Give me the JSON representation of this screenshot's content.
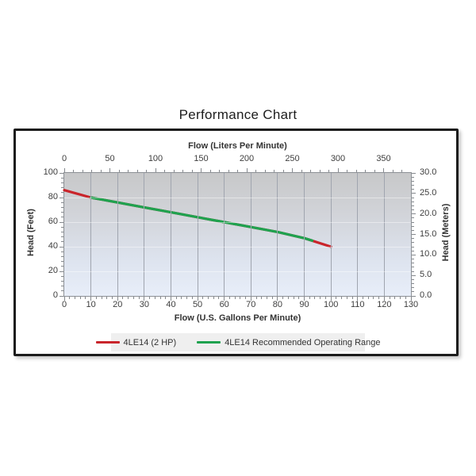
{
  "title": "Performance Chart",
  "chart_data": {
    "type": "line",
    "title": "Performance Chart",
    "plot_background_gradient": [
      "#c7c8c9",
      "#e8eef9"
    ],
    "gridlines": {
      "vertical": true,
      "horizontal_faint": true
    },
    "axes": {
      "top": {
        "title": "Flow (Liters Per Minute)",
        "min": 0,
        "max": 380,
        "major_ticks": [
          0,
          50,
          100,
          150,
          200,
          250,
          300,
          350
        ],
        "minor_step": 10
      },
      "bottom": {
        "title": "Flow (U.S. Gallons Per Minute)",
        "min": 0,
        "max": 130,
        "major_ticks": [
          0,
          10,
          20,
          30,
          40,
          50,
          60,
          70,
          80,
          90,
          100,
          110,
          120,
          130
        ],
        "minor_step": 2
      },
      "left": {
        "title": "Head (Feet)",
        "min": 0,
        "max": 100,
        "major_ticks": [
          0,
          20,
          40,
          60,
          80,
          100
        ],
        "minor_step": 4
      },
      "right": {
        "title": "Head (Meters)",
        "min": 0,
        "max": 30,
        "major_ticks": [
          0,
          5,
          10,
          15,
          20,
          25,
          30
        ],
        "major_labels": [
          "0.0",
          "5.0",
          "10.0",
          "15.0",
          "20.0",
          "25.0",
          "30.0"
        ],
        "minor_step": 1
      }
    },
    "series": [
      {
        "name": "4LE14 (2 HP)",
        "color": "#c9252b",
        "points": [
          [
            0,
            86
          ],
          [
            10,
            80
          ],
          [
            20,
            76
          ],
          [
            30,
            72
          ],
          [
            40,
            68
          ],
          [
            50,
            64
          ],
          [
            60,
            60
          ],
          [
            70,
            56
          ],
          [
            80,
            52
          ],
          [
            90,
            47
          ],
          [
            100,
            40
          ]
        ]
      },
      {
        "name": "4LE14 Recommended Operating Range",
        "color": "#1fa24f",
        "points": [
          [
            10,
            80
          ],
          [
            20,
            76
          ],
          [
            30,
            72
          ],
          [
            40,
            68
          ],
          [
            50,
            64
          ],
          [
            60,
            60
          ],
          [
            70,
            56
          ],
          [
            80,
            52
          ],
          [
            90,
            47
          ],
          [
            93,
            45
          ]
        ]
      }
    ],
    "legend_position": "bottom"
  }
}
